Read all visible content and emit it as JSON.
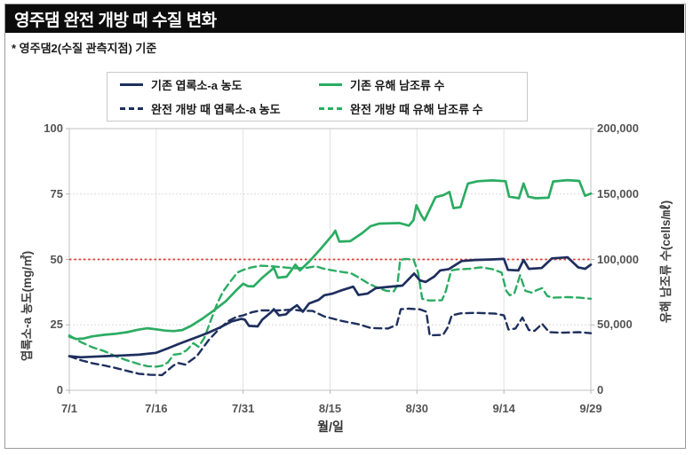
{
  "window": {
    "title": "영주댐 완전 개방 때 수질 변화",
    "subtitle": "* 영주댐2(수질 관측지점) 기준"
  },
  "colors": {
    "navy": "#1e2f5d",
    "green": "#2bac62",
    "reference_red": "#e0382e",
    "grid": "#dcdcdc",
    "frame": "#c2c2c2",
    "tick_text": "#545454",
    "titlebar_bg": "#0c0c0c"
  },
  "legend": {
    "items": [
      {
        "label": "기존 엽록소-a 농도",
        "color": "#1e2f5d",
        "dash": false
      },
      {
        "label": "기존 유해 남조류 수",
        "color": "#2bac62",
        "dash": false
      },
      {
        "label": "완전 개방 때 엽록소-a 농도",
        "color": "#1e2f5d",
        "dash": true
      },
      {
        "label": "완전 개방 때 유해 남조류 수",
        "color": "#2bac62",
        "dash": true
      }
    ]
  },
  "chart_data": {
    "type": "line",
    "title": "영주댐 완전 개방 때 수질 변화",
    "grid": true,
    "legend_position": "top",
    "x_axis": {
      "label": "월/일",
      "tick_days": [
        0,
        15,
        30,
        45,
        60,
        75,
        90
      ],
      "tick_labels": [
        "7/1",
        "7/16",
        "7/31",
        "8/15",
        "8/30",
        "9/14",
        "9/29"
      ],
      "range_days": [
        0,
        90
      ]
    },
    "y_axis_left": {
      "label": "엽록소-a 농도(mg/㎥)",
      "tick_values": [
        0,
        25,
        50,
        75,
        100
      ],
      "tick_labels": [
        "0",
        "25",
        "50",
        "75",
        "100"
      ],
      "range": [
        0,
        100
      ]
    },
    "y_axis_right": {
      "label": "유해 남조류 수(cells/㎖)",
      "tick_values": [
        0,
        50000,
        100000,
        150000,
        200000
      ],
      "tick_labels": [
        "0",
        "50,000",
        "100,000",
        "150,000",
        "200,000"
      ],
      "range": [
        0,
        200000
      ]
    },
    "reference_line": {
      "axis_left_value": 50,
      "axis_right_value": 100000,
      "color": "#e0382e",
      "style": "dotted"
    },
    "series": [
      {
        "name": "기존 엽록소-a 농도",
        "axis": "left",
        "unit": "mg/㎥",
        "color": "#1e2f5d",
        "dash": false,
        "points": [
          [
            0,
            13
          ],
          [
            2,
            12.6
          ],
          [
            4,
            12.8
          ],
          [
            6,
            13
          ],
          [
            9,
            13.3
          ],
          [
            12,
            13.6
          ],
          [
            15,
            14.3
          ],
          [
            17,
            16
          ],
          [
            19,
            17.8
          ],
          [
            22,
            20.3
          ],
          [
            24,
            22
          ],
          [
            26,
            24
          ],
          [
            28,
            26.3
          ],
          [
            29.7,
            27.3
          ],
          [
            30.3,
            27
          ],
          [
            31,
            24.6
          ],
          [
            32.5,
            24.4
          ],
          [
            33.3,
            27
          ],
          [
            34.8,
            29.8
          ],
          [
            35.3,
            31
          ],
          [
            36.2,
            28.6
          ],
          [
            37.4,
            29
          ],
          [
            38.3,
            31
          ],
          [
            39.3,
            32.5
          ],
          [
            40.3,
            30
          ],
          [
            41.4,
            33.2
          ],
          [
            43,
            34.5
          ],
          [
            44,
            36.3
          ],
          [
            45.5,
            37
          ],
          [
            47,
            38.2
          ],
          [
            49,
            39.6
          ],
          [
            49.9,
            36.4
          ],
          [
            51.5,
            37
          ],
          [
            52.9,
            39
          ],
          [
            55,
            39.5
          ],
          [
            57.5,
            40
          ],
          [
            59.5,
            44.6
          ],
          [
            60.5,
            42
          ],
          [
            61.5,
            41.4
          ],
          [
            63,
            43.5
          ],
          [
            64,
            45.8
          ],
          [
            65.5,
            46.3
          ],
          [
            67.7,
            49.4
          ],
          [
            70,
            49.8
          ],
          [
            73,
            50
          ],
          [
            75,
            50.2
          ],
          [
            75.7,
            46
          ],
          [
            77.5,
            45.8
          ],
          [
            78.4,
            49.8
          ],
          [
            79.3,
            46.4
          ],
          [
            81.5,
            46.7
          ],
          [
            83.3,
            50.4
          ],
          [
            86,
            50.8
          ],
          [
            87.8,
            47
          ],
          [
            89,
            46.4
          ],
          [
            90,
            48
          ]
        ]
      },
      {
        "name": "완전 개방 때 엽록소-a 농도",
        "axis": "left",
        "unit": "mg/㎥",
        "color": "#1e2f5d",
        "dash": true,
        "points": [
          [
            0,
            13
          ],
          [
            2,
            11.5
          ],
          [
            4,
            10.3
          ],
          [
            6,
            9.5
          ],
          [
            8,
            8.5
          ],
          [
            10,
            7.4
          ],
          [
            12,
            6.3
          ],
          [
            14,
            5.9
          ],
          [
            16,
            5.8
          ],
          [
            18,
            9.5
          ],
          [
            18.8,
            10.4
          ],
          [
            20,
            9.8
          ],
          [
            22,
            13
          ],
          [
            24,
            19
          ],
          [
            26,
            23.8
          ],
          [
            27.5,
            26.5
          ],
          [
            28.8,
            28
          ],
          [
            30,
            28.6
          ],
          [
            31.5,
            29.8
          ],
          [
            33,
            30.5
          ],
          [
            36,
            30.5
          ],
          [
            38.5,
            30.8
          ],
          [
            40,
            30.4
          ],
          [
            42,
            30.3
          ],
          [
            44,
            28.2
          ],
          [
            47,
            26.5
          ],
          [
            50,
            25.2
          ],
          [
            52,
            23.8
          ],
          [
            55,
            23.6
          ],
          [
            56.5,
            25
          ],
          [
            57.2,
            31
          ],
          [
            58.5,
            31.2
          ],
          [
            60.5,
            30.9
          ],
          [
            61.6,
            30
          ],
          [
            62.2,
            21
          ],
          [
            64.5,
            21.2
          ],
          [
            65.3,
            24
          ],
          [
            66,
            28.6
          ],
          [
            67.5,
            29.4
          ],
          [
            70,
            29.6
          ],
          [
            73.5,
            29.3
          ],
          [
            75,
            28.6
          ],
          [
            75.8,
            23.2
          ],
          [
            77,
            23.6
          ],
          [
            78.2,
            27.8
          ],
          [
            79.3,
            23
          ],
          [
            80.3,
            22.7
          ],
          [
            81.6,
            25.4
          ],
          [
            82.8,
            22.2
          ],
          [
            85,
            22
          ],
          [
            88,
            22.2
          ],
          [
            90,
            21.8
          ]
        ]
      },
      {
        "name": "기존 유해 남조류 수",
        "axis": "right",
        "unit": "cells/㎖",
        "color": "#2bac62",
        "dash": false,
        "points": [
          [
            0,
            41000
          ],
          [
            1.2,
            39200
          ],
          [
            2.5,
            39600
          ],
          [
            4,
            41200
          ],
          [
            6,
            42400
          ],
          [
            8,
            43200
          ],
          [
            10,
            44400
          ],
          [
            12,
            46400
          ],
          [
            13.5,
            47400
          ],
          [
            15,
            46600
          ],
          [
            16.5,
            45600
          ],
          [
            18,
            45200
          ],
          [
            19.5,
            46000
          ],
          [
            21,
            49200
          ],
          [
            23,
            54800
          ],
          [
            25,
            61200
          ],
          [
            27,
            68000
          ],
          [
            29,
            77200
          ],
          [
            30,
            81400
          ],
          [
            30.8,
            79600
          ],
          [
            31.8,
            79400
          ],
          [
            33.3,
            86000
          ],
          [
            34.8,
            91600
          ],
          [
            35.3,
            93600
          ],
          [
            36,
            86000
          ],
          [
            37.5,
            86800
          ],
          [
            38.3,
            91600
          ],
          [
            39,
            96000
          ],
          [
            39.8,
            91600
          ],
          [
            41.4,
            98400
          ],
          [
            43.2,
            107200
          ],
          [
            45.4,
            118600
          ],
          [
            45.9,
            122000
          ],
          [
            46.6,
            113600
          ],
          [
            48.5,
            114000
          ],
          [
            50.5,
            120000
          ],
          [
            52,
            125400
          ],
          [
            53.5,
            127400
          ],
          [
            57,
            127800
          ],
          [
            58.6,
            125800
          ],
          [
            59.4,
            130000
          ],
          [
            59.9,
            141400
          ],
          [
            60.7,
            134000
          ],
          [
            61.3,
            130000
          ],
          [
            63.2,
            147600
          ],
          [
            64.6,
            149200
          ],
          [
            65.6,
            151600
          ],
          [
            66.3,
            139200
          ],
          [
            67.5,
            140000
          ],
          [
            68.8,
            158000
          ],
          [
            70.5,
            159800
          ],
          [
            73,
            160400
          ],
          [
            75.3,
            159800
          ],
          [
            75.9,
            148000
          ],
          [
            77.6,
            146800
          ],
          [
            78.4,
            158000
          ],
          [
            79.2,
            148000
          ],
          [
            80.5,
            146800
          ],
          [
            82.7,
            147200
          ],
          [
            83.5,
            159600
          ],
          [
            86,
            160600
          ],
          [
            88,
            160000
          ],
          [
            89,
            148600
          ],
          [
            90,
            150400
          ]
        ]
      },
      {
        "name": "완전 개방 때 유해 남조류 수",
        "axis": "right",
        "unit": "cells/㎖",
        "color": "#2bac62",
        "dash": true,
        "points": [
          [
            0,
            42000
          ],
          [
            2,
            36800
          ],
          [
            4,
            32800
          ],
          [
            6,
            30000
          ],
          [
            8,
            26000
          ],
          [
            10,
            22800
          ],
          [
            12,
            20000
          ],
          [
            13.5,
            18400
          ],
          [
            15,
            18000
          ],
          [
            16,
            18800
          ],
          [
            17,
            21200
          ],
          [
            18,
            27200
          ],
          [
            19.3,
            28000
          ],
          [
            20.3,
            30800
          ],
          [
            21.4,
            36000
          ],
          [
            22.3,
            33200
          ],
          [
            23.3,
            40000
          ],
          [
            24.3,
            52000
          ],
          [
            25.5,
            66000
          ],
          [
            26.5,
            75200
          ],
          [
            27.6,
            82000
          ],
          [
            29,
            90000
          ],
          [
            30,
            92000
          ],
          [
            31.5,
            94000
          ],
          [
            33,
            95200
          ],
          [
            35,
            94800
          ],
          [
            37,
            94000
          ],
          [
            39,
            93200
          ],
          [
            41,
            93600
          ],
          [
            42.5,
            94800
          ],
          [
            44,
            92800
          ],
          [
            46,
            91200
          ],
          [
            48.6,
            89400
          ],
          [
            50,
            86000
          ],
          [
            51.7,
            81400
          ],
          [
            53,
            78800
          ],
          [
            54.7,
            76000
          ],
          [
            56,
            75600
          ],
          [
            56.6,
            80000
          ],
          [
            57.1,
            99600
          ],
          [
            58,
            100400
          ],
          [
            59.4,
            100000
          ],
          [
            60.2,
            90000
          ],
          [
            60.9,
            70000
          ],
          [
            62,
            68600
          ],
          [
            64.3,
            68800
          ],
          [
            65,
            76000
          ],
          [
            65.9,
            91600
          ],
          [
            67,
            92400
          ],
          [
            69,
            92800
          ],
          [
            71,
            94000
          ],
          [
            73,
            92600
          ],
          [
            74.6,
            90000
          ],
          [
            75.4,
            76000
          ],
          [
            76,
            72600
          ],
          [
            76.8,
            74000
          ],
          [
            77.8,
            88000
          ],
          [
            78.7,
            76000
          ],
          [
            79.8,
            74600
          ],
          [
            80.8,
            76800
          ],
          [
            81.6,
            78000
          ],
          [
            82.5,
            72000
          ],
          [
            83.5,
            70800
          ],
          [
            86,
            71200
          ],
          [
            88,
            70800
          ],
          [
            90,
            70000
          ]
        ]
      }
    ]
  }
}
